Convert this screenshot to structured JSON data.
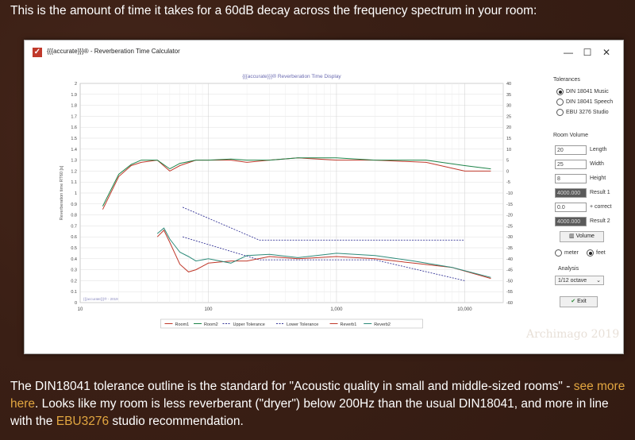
{
  "intro_text": "This is the amount of time it takes for a 60dB decay across the frequency spectrum in your room:",
  "window": {
    "title": "{{{accurate}}}® - Reverberation Time Calculator",
    "minimize": "—",
    "maximize": "☐",
    "close": "✕"
  },
  "chart_data": {
    "type": "line",
    "title": "{{{accurate}}}® Reverberation Time Display",
    "ylabel": "Reverberation time RT60 [s]",
    "xscale": "log",
    "xlim": [
      10,
      20000
    ],
    "ylim": [
      0,
      2
    ],
    "y2lim": [
      -60,
      40
    ],
    "x_ticks": [
      "10",
      "100",
      "1,000",
      "10,000"
    ],
    "y_ticks": [
      "0",
      "0.1",
      "0.2",
      "0.3",
      "0.4",
      "0.5",
      "0.6",
      "0.7",
      "0.8",
      "0.9",
      "1",
      "1.1",
      "1.2",
      "1.3",
      "1.4",
      "1.5",
      "1.6",
      "1.7",
      "1.8",
      "1.9",
      "2"
    ],
    "y2_ticks": [
      "-60",
      "-55",
      "-50",
      "-45",
      "-40",
      "-35",
      "-30",
      "-25",
      "-20",
      "-15",
      "-10",
      "-5",
      "0",
      "5",
      "10",
      "15",
      "20",
      "25",
      "30",
      "35",
      "40"
    ],
    "grid": true,
    "legend_position": "bottom",
    "watermark_small": "{{{accurate}}}® - 2019",
    "series": [
      {
        "name": "Room1",
        "color": "#c0392b",
        "axis": "left",
        "x": [
          15,
          20,
          25,
          30,
          40,
          50,
          60,
          80,
          100,
          150,
          200,
          300,
          500,
          1000,
          2000,
          5000,
          10000,
          16000
        ],
        "values": [
          0.85,
          1.15,
          1.25,
          1.28,
          1.3,
          1.2,
          1.25,
          1.3,
          1.3,
          1.3,
          1.28,
          1.3,
          1.32,
          1.3,
          1.3,
          1.28,
          1.2,
          1.2
        ]
      },
      {
        "name": "Room2",
        "color": "#1e8449",
        "axis": "left",
        "x": [
          15,
          20,
          25,
          30,
          40,
          50,
          60,
          80,
          100,
          150,
          200,
          300,
          500,
          1000,
          2000,
          5000,
          10000,
          16000
        ],
        "values": [
          0.88,
          1.17,
          1.26,
          1.3,
          1.3,
          1.22,
          1.27,
          1.3,
          1.3,
          1.31,
          1.3,
          1.3,
          1.32,
          1.32,
          1.3,
          1.3,
          1.25,
          1.22
        ]
      },
      {
        "name": "Upper Tolerance",
        "color": "#3a3a9a",
        "axis": "left",
        "dashed": true,
        "x": [
          63,
          250,
          10000
        ],
        "values": [
          0.87,
          0.57,
          0.57
        ]
      },
      {
        "name": "Lower Tolerance",
        "color": "#3a3a9a",
        "axis": "left",
        "dashed": true,
        "x": [
          63,
          250,
          2000,
          10000
        ],
        "values": [
          0.6,
          0.39,
          0.39,
          0.2
        ]
      },
      {
        "name": "Reverb1",
        "color": "#c0392b",
        "axis": "left",
        "x": [
          40,
          45,
          50,
          60,
          70,
          80,
          100,
          150,
          200,
          300,
          500,
          1000,
          2000,
          4000,
          8000,
          16000
        ],
        "values": [
          0.6,
          0.66,
          0.55,
          0.35,
          0.28,
          0.3,
          0.36,
          0.38,
          0.38,
          0.42,
          0.4,
          0.42,
          0.4,
          0.36,
          0.32,
          0.22
        ]
      },
      {
        "name": "Reverb2",
        "color": "#2e8b7a",
        "axis": "left",
        "x": [
          40,
          45,
          50,
          60,
          70,
          80,
          100,
          150,
          200,
          300,
          500,
          1000,
          2000,
          4000,
          8000,
          16000
        ],
        "values": [
          0.63,
          0.68,
          0.58,
          0.46,
          0.42,
          0.38,
          0.4,
          0.36,
          0.43,
          0.44,
          0.41,
          0.45,
          0.43,
          0.38,
          0.32,
          0.23
        ]
      }
    ]
  },
  "panel": {
    "tolerances_label": "Tolerances",
    "tolerance_options": [
      "DIN 18041 Music",
      "DIN 18041 Speech",
      "EBU 3276 Studio"
    ],
    "tolerance_selected": 0,
    "room_volume_label": "Room Volume",
    "length_value": "20",
    "length_label": "Length",
    "width_value": "25",
    "width_label": "Width",
    "height_value": "8",
    "height_label": "Height",
    "result1_value": "4000.000",
    "result1_label": "Result 1",
    "correct_value": "0.0",
    "correct_label": "+ correct",
    "result2_value": "4000.000",
    "result2_label": "Result 2",
    "volume_button": "Volume",
    "unit_meter": "meter",
    "unit_feet": "feet",
    "analysis_label": "Analysis",
    "analysis_value": "1/12 octave",
    "exit_button": "Exit"
  },
  "watermark": "Archimago 2019",
  "outro": {
    "part1": "The DIN18041 tolerance outline is the standard for \"Acoustic quality in small and middle-sized rooms\" - ",
    "link1": "see more here",
    "part2": ". Looks like my room is less reverberant (\"dryer\") below 200Hz than the usual DIN18041, and more in line with the ",
    "link2": "EBU3276",
    "part3": " studio recommendation."
  }
}
